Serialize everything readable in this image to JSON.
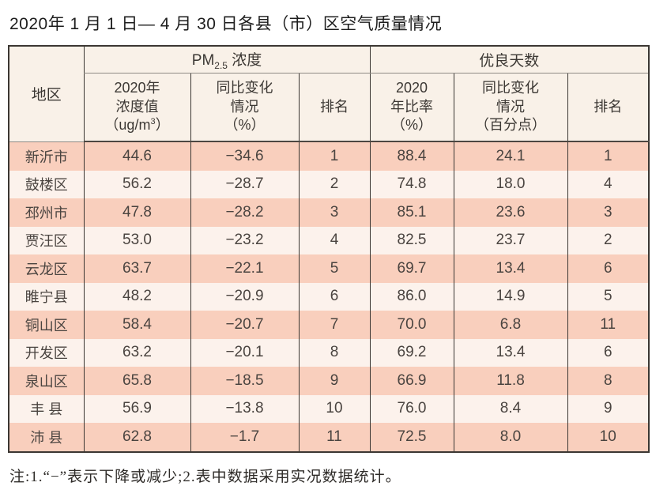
{
  "title": "2020年 1 月 1 日— 4 月 30 日各县（市）区空气质量情况",
  "note": "注:1.“−”表示下降或减少;2.表中数据采用实况数据统计。",
  "colors": {
    "row_dark": "#f9cfbd",
    "row_light": "#fcf2ec",
    "header_bg": "#f9f1e8",
    "border": "#3b3733"
  },
  "chart_data": {
    "type": "table",
    "title": "2020年 1 月 1 日— 4 月 30 日各县（市）区空气质量情况",
    "header": {
      "region": "地区",
      "pm_prefix": "PM",
      "pm_sub": "2.5",
      "pm_suffix": " 浓度",
      "good_group": "优良天数",
      "pm_value_lines": [
        "2020年",
        "浓度值"
      ],
      "pm_value_unit_pre": "（ug/m",
      "pm_value_unit_sup": "3",
      "pm_value_unit_post": "）",
      "pm_change_lines": [
        "同比变化",
        "情况",
        "（%）"
      ],
      "pm_rank": "排名",
      "good_ratio_lines": [
        "2020",
        "年比率",
        "（%）"
      ],
      "good_change_lines": [
        "同比变化",
        "情况",
        "（百分点）"
      ],
      "good_rank": "排名"
    },
    "rows": [
      {
        "region": "新沂市",
        "pm_value": "44.6",
        "pm_change": "−34.6",
        "pm_rank": "1",
        "good_ratio": "88.4",
        "good_change": "24.1",
        "good_rank": "1"
      },
      {
        "region": "鼓楼区",
        "pm_value": "56.2",
        "pm_change": "−28.7",
        "pm_rank": "2",
        "good_ratio": "74.8",
        "good_change": "18.0",
        "good_rank": "4"
      },
      {
        "region": "邳州市",
        "pm_value": "47.8",
        "pm_change": "−28.2",
        "pm_rank": "3",
        "good_ratio": "85.1",
        "good_change": "23.6",
        "good_rank": "3"
      },
      {
        "region": "贾汪区",
        "pm_value": "53.0",
        "pm_change": "−23.2",
        "pm_rank": "4",
        "good_ratio": "82.5",
        "good_change": "23.7",
        "good_rank": "2"
      },
      {
        "region": "云龙区",
        "pm_value": "63.7",
        "pm_change": "−22.1",
        "pm_rank": "5",
        "good_ratio": "69.7",
        "good_change": "13.4",
        "good_rank": "6"
      },
      {
        "region": "睢宁县",
        "pm_value": "48.2",
        "pm_change": "−20.9",
        "pm_rank": "6",
        "good_ratio": "86.0",
        "good_change": "14.9",
        "good_rank": "5"
      },
      {
        "region": "铜山区",
        "pm_value": "58.4",
        "pm_change": "−20.7",
        "pm_rank": "7",
        "good_ratio": "70.0",
        "good_change": "6.8",
        "good_rank": "11"
      },
      {
        "region": "开发区",
        "pm_value": "63.2",
        "pm_change": "−20.1",
        "pm_rank": "8",
        "good_ratio": "69.2",
        "good_change": "13.4",
        "good_rank": "6"
      },
      {
        "region": "泉山区",
        "pm_value": "65.8",
        "pm_change": "−18.5",
        "pm_rank": "9",
        "good_ratio": "66.9",
        "good_change": "11.8",
        "good_rank": "8"
      },
      {
        "region": "丰 县",
        "pm_value": "56.9",
        "pm_change": "−13.8",
        "pm_rank": "10",
        "good_ratio": "76.0",
        "good_change": "8.4",
        "good_rank": "9"
      },
      {
        "region": "沛 县",
        "pm_value": "62.8",
        "pm_change": "−1.7",
        "pm_rank": "11",
        "good_ratio": "72.5",
        "good_change": "8.0",
        "good_rank": "10"
      }
    ]
  }
}
